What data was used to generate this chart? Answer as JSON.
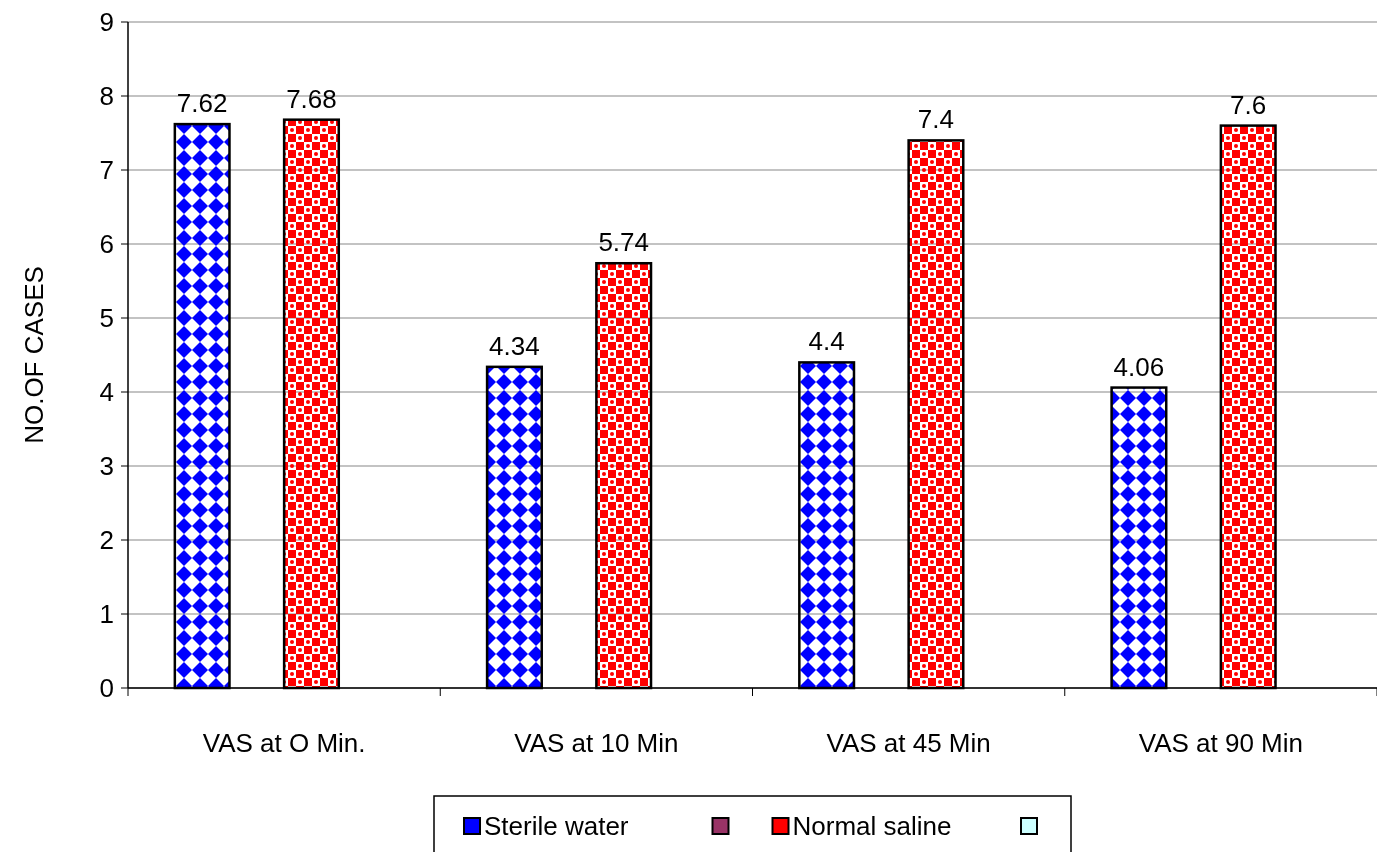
{
  "chart_data": {
    "type": "bar",
    "ylabel": "NO.OF CASES",
    "categories": [
      "VAS at O Min.",
      "VAS at 10 Min",
      "VAS at 45 Min",
      "VAS at 90 Min"
    ],
    "series": [
      {
        "name": "Sterile water",
        "color": "#0000ff",
        "values": [
          7.62,
          4.34,
          4.4,
          4.06
        ]
      },
      {
        "color": "#993366",
        "values": [
          null,
          null,
          null,
          null
        ]
      },
      {
        "name": "Normal saline",
        "color": "#ff0000",
        "values": [
          7.68,
          5.74,
          7.4,
          7.6
        ]
      },
      {
        "color": "#ccffff",
        "values": [
          null,
          null,
          null,
          null
        ]
      }
    ],
    "ylim": [
      0,
      9
    ],
    "yticks": [
      0,
      1,
      2,
      3,
      4,
      5,
      6,
      7,
      8,
      9
    ],
    "grid": "y",
    "legend": "bottom",
    "data_labels": true
  }
}
